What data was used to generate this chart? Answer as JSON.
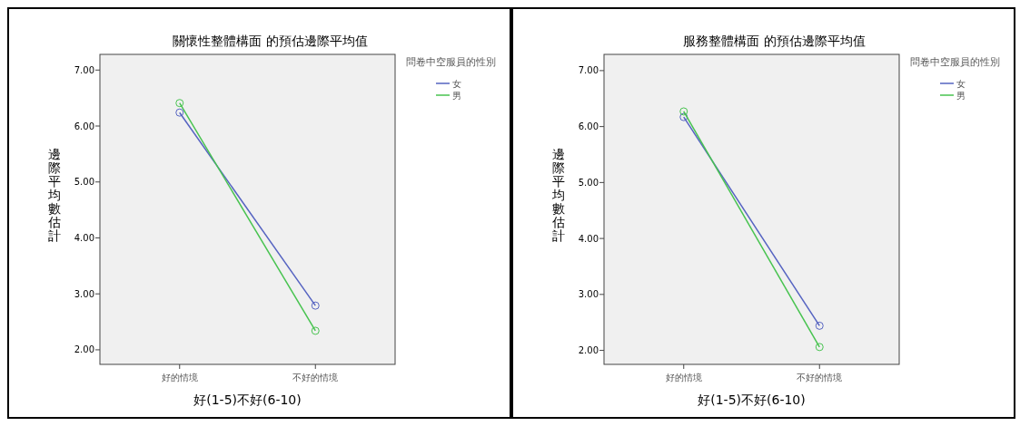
{
  "chart_data": [
    {
      "type": "line",
      "title": "關懷性整體構面 的預估邊際平均值",
      "xlabel": "好(1-5)不好(6-10)",
      "ylabel": "邊際平均數估計",
      "legend_title": "問卷中空服員的性別",
      "categories": [
        "好的情境",
        "不好的情境"
      ],
      "series": [
        {
          "name": "女",
          "color": "#5563c1",
          "values": [
            6.24,
            2.79
          ]
        },
        {
          "name": "男",
          "color": "#47c34f",
          "values": [
            6.41,
            2.34
          ]
        }
      ],
      "ylim": [
        1.74,
        7.28
      ],
      "yticks": [
        {
          "value": 2,
          "label": "2.00"
        },
        {
          "value": 3,
          "label": "3.00"
        },
        {
          "value": 4,
          "label": "4.00"
        },
        {
          "value": 5,
          "label": "5.00"
        },
        {
          "value": 6,
          "label": "6.00"
        },
        {
          "value": 7,
          "label": "7.00"
        }
      ],
      "grid": false,
      "legend": "top right",
      "marker": "circle",
      "line_style": "solid"
    },
    {
      "type": "line",
      "title": "服務整體構面 的預估邊際平均值",
      "xlabel": "好(1-5)不好(6-10)",
      "ylabel": "邊際平均數估計",
      "legend_title": "問卷中空服員的性別",
      "categories": [
        "好的情境",
        "不好的情境"
      ],
      "series": [
        {
          "name": "女",
          "color": "#5563c1",
          "values": [
            6.17,
            2.44
          ]
        },
        {
          "name": "男",
          "color": "#47c34f",
          "values": [
            6.27,
            2.06
          ]
        }
      ],
      "ylim": [
        1.75,
        7.29
      ],
      "yticks": [
        {
          "value": 2,
          "label": "2.00"
        },
        {
          "value": 3,
          "label": "3.00"
        },
        {
          "value": 4,
          "label": "4.00"
        },
        {
          "value": 5,
          "label": "5.00"
        },
        {
          "value": 6,
          "label": "6.00"
        },
        {
          "value": 7,
          "label": "7.00"
        }
      ],
      "grid": false,
      "legend": "top right",
      "marker": "circle",
      "line_style": "solid"
    }
  ]
}
